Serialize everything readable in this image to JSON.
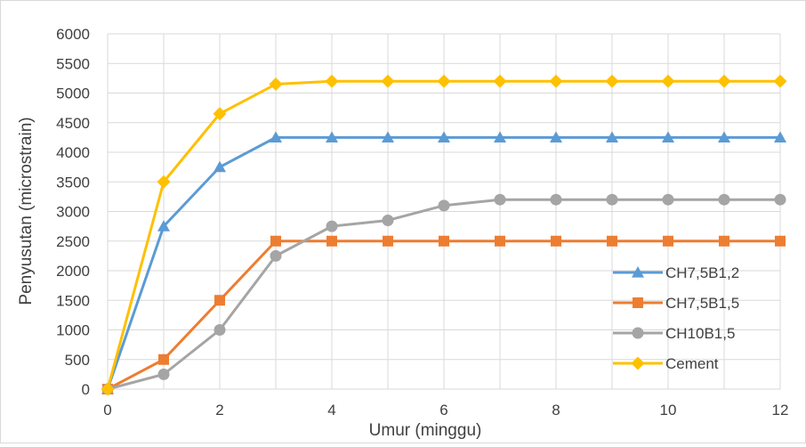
{
  "chart_data": {
    "type": "line",
    "title": "",
    "xlabel": "Umur (minggu)",
    "ylabel": "Penyusutan (microstrain)",
    "xlim": [
      0,
      12
    ],
    "ylim": [
      0,
      6000
    ],
    "x_ticks": [
      0,
      2,
      4,
      6,
      8,
      10,
      12
    ],
    "y_ticks": [
      0,
      500,
      1000,
      1500,
      2000,
      2500,
      3000,
      3500,
      4000,
      4500,
      5000,
      5500,
      6000
    ],
    "grid": "horizontal and vertical",
    "legend_position": "right",
    "x": [
      0,
      1,
      2,
      3,
      4,
      5,
      6,
      7,
      8,
      9,
      10,
      11,
      12
    ],
    "series": [
      {
        "name": "CH7,5B1,2",
        "color": "#5b9bd5",
        "marker": "triangle",
        "values": [
          0,
          2750,
          3750,
          4250,
          4250,
          4250,
          4250,
          4250,
          4250,
          4250,
          4250,
          4250,
          4250
        ]
      },
      {
        "name": "CH7,5B1,5",
        "color": "#ed7d31",
        "marker": "square",
        "values": [
          0,
          500,
          1500,
          2500,
          2500,
          2500,
          2500,
          2500,
          2500,
          2500,
          2500,
          2500,
          2500
        ]
      },
      {
        "name": "CH10B1,5",
        "color": "#a5a5a5",
        "marker": "circle",
        "values": [
          0,
          250,
          1000,
          2250,
          2750,
          2850,
          3100,
          3200,
          3200,
          3200,
          3200,
          3200,
          3200
        ]
      },
      {
        "name": "Cement",
        "color": "#ffc000",
        "marker": "diamond",
        "values": [
          0,
          3500,
          4650,
          5150,
          5200,
          5200,
          5200,
          5200,
          5200,
          5200,
          5200,
          5200,
          5200
        ]
      }
    ]
  }
}
